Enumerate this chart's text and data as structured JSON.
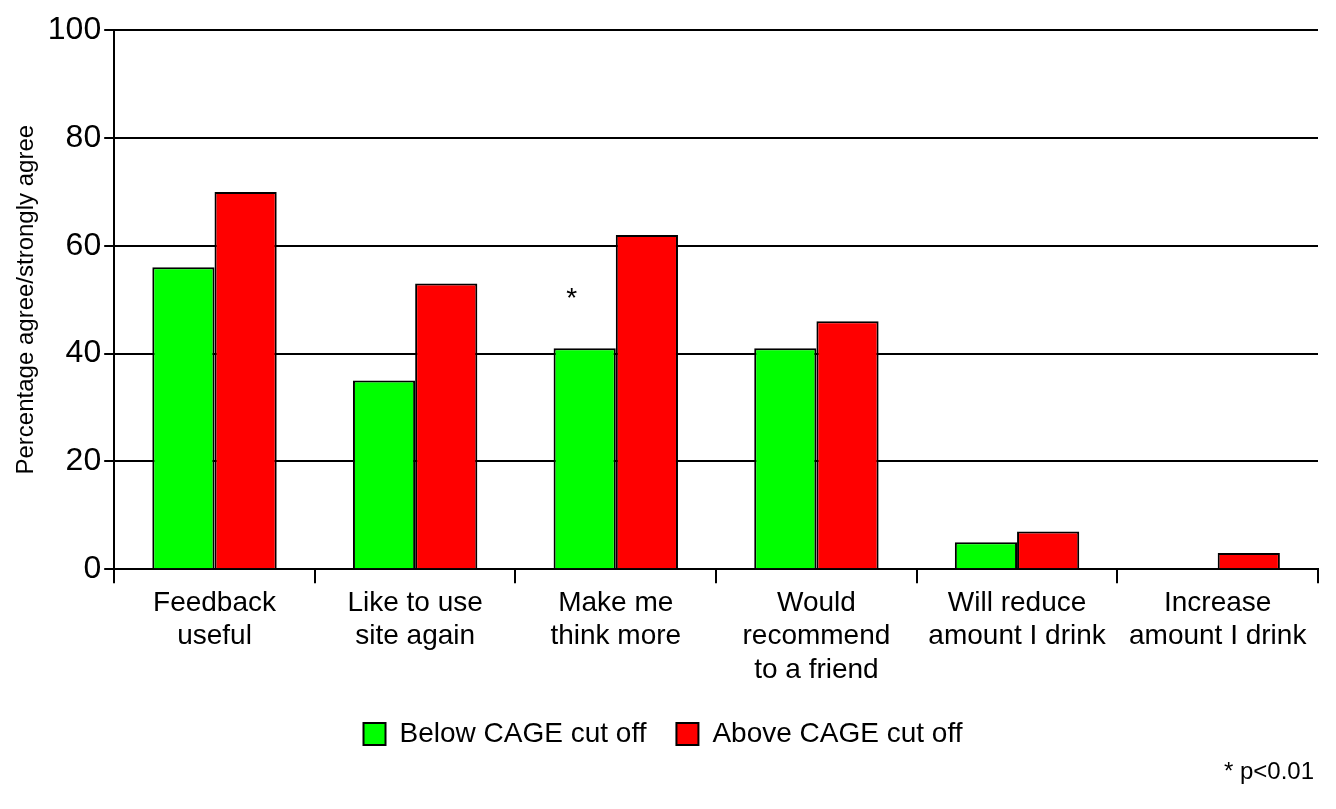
{
  "chart_data": {
    "type": "bar",
    "ylabel": "Percentage agree/strongly agree",
    "categories": [
      "Feedback useful",
      "Like to use site again",
      "Make me think more",
      "Would recommend to a friend",
      "Will reduce amount I drink",
      "Increase amount I drink"
    ],
    "series": [
      {
        "name": "Below CAGE cut off",
        "color": "#00ff00",
        "values": [
          56,
          35,
          41,
          41,
          5,
          0
        ]
      },
      {
        "name": "Above CAGE cut off",
        "color": "#ff0000",
        "values": [
          70,
          53,
          62,
          46,
          7,
          3
        ]
      }
    ],
    "ylim": [
      0,
      100
    ],
    "yticks": [
      0,
      20,
      40,
      60,
      80,
      100
    ],
    "grid": "y",
    "legend": "bottom",
    "annotations": [
      {
        "text": "*",
        "x": "Make me think more",
        "y": 50
      },
      "* p<0.01"
    ]
  }
}
